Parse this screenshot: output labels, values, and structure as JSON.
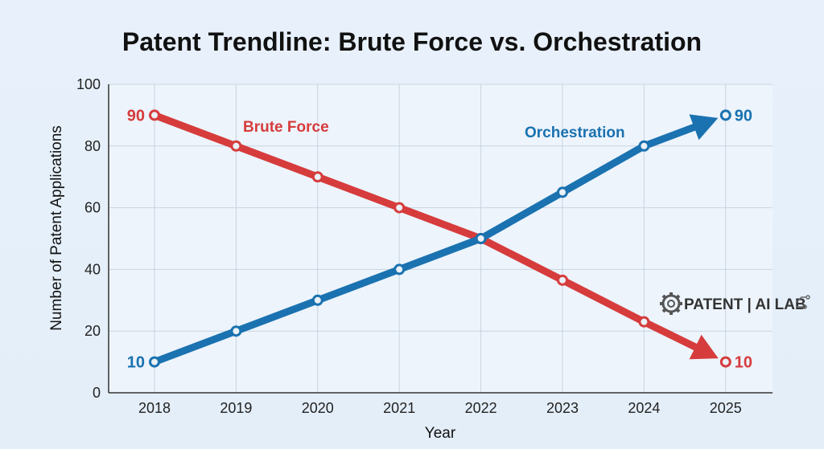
{
  "chart_data": {
    "type": "line",
    "title": "Patent Trendline: Brute Force vs. Orchestration",
    "xlabel": "Year",
    "ylabel": "Number of Patent Applications",
    "x": [
      "2018",
      "2019",
      "2020",
      "2021",
      "2022",
      "2023",
      "2024",
      "2025"
    ],
    "ylim": [
      0,
      100
    ],
    "yticks": [
      0,
      20,
      40,
      60,
      80,
      100
    ],
    "grid": true,
    "series": [
      {
        "name": "Brute Force",
        "color": "#d63c3c",
        "values": [
          90,
          80,
          70,
          60,
          50,
          36.5,
          23,
          10
        ],
        "start_label": "90",
        "end_label": "10"
      },
      {
        "name": "Orchestration",
        "color": "#1a72b0",
        "values": [
          10,
          20,
          30,
          40,
          50,
          65,
          80,
          90
        ],
        "start_label": "10",
        "end_label": "90"
      }
    ]
  },
  "logo": {
    "text": "PATENT | AI LAB",
    "icon": "gear-icon"
  }
}
